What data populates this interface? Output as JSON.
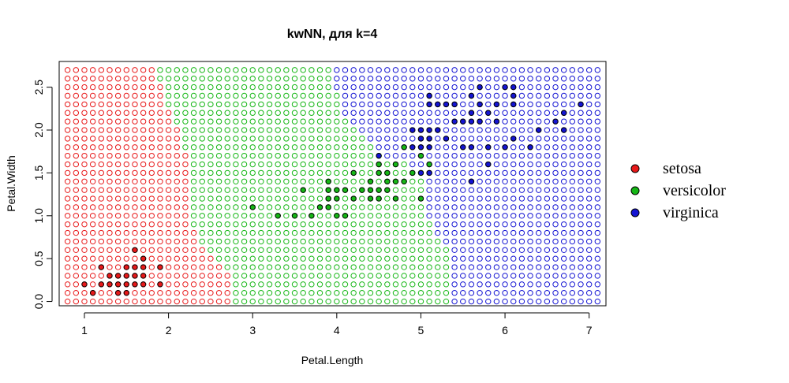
{
  "chart_data": {
    "type": "scatter",
    "title": "kwNN, для k=4",
    "xlabel": "Petal.Length",
    "ylabel": "Petal.Width",
    "xlim": [
      0.7,
      7.2
    ],
    "ylim": [
      -0.05,
      2.8
    ],
    "x_ticks": [
      1,
      2,
      3,
      4,
      5,
      6,
      7
    ],
    "y_ticks": [
      0.0,
      0.5,
      1.0,
      1.5,
      2.0,
      2.5
    ],
    "grid": {
      "x_start": 0.8,
      "x_end": 7.1,
      "x_step": 0.1,
      "y_start": 0.0,
      "y_end": 2.7,
      "y_step": 0.1,
      "marker": "open-circle",
      "class_boundaries_note_by_row": "per row y, x < b1 => setosa, b1 <= x < b2 => versicolor, x >= b2 => virginica",
      "rows": [
        {
          "y": 0.0,
          "b1": 2.8,
          "b2": 5.4
        },
        {
          "y": 0.1,
          "b1": 2.8,
          "b2": 5.4
        },
        {
          "y": 0.2,
          "b1": 2.8,
          "b2": 5.4
        },
        {
          "y": 0.3,
          "b1": 2.8,
          "b2": 5.4
        },
        {
          "y": 0.4,
          "b1": 2.7,
          "b2": 5.4
        },
        {
          "y": 0.5,
          "b1": 2.6,
          "b2": 5.4
        },
        {
          "y": 0.6,
          "b1": 2.5,
          "b2": 5.4
        },
        {
          "y": 0.7,
          "b1": 2.4,
          "b2": 5.3
        },
        {
          "y": 0.8,
          "b1": 2.4,
          "b2": 5.2
        },
        {
          "y": 0.9,
          "b1": 2.3,
          "b2": 5.2
        },
        {
          "y": 1.0,
          "b1": 2.3,
          "b2": 5.1
        },
        {
          "y": 1.1,
          "b1": 2.3,
          "b2": 5.1
        },
        {
          "y": 1.2,
          "b1": 2.3,
          "b2": 5.1
        },
        {
          "y": 1.3,
          "b1": 2.3,
          "b2": 5.1
        },
        {
          "y": 1.4,
          "b1": 2.3,
          "b2": 5.1
        },
        {
          "y": 1.5,
          "b1": 2.3,
          "b2": 5.1
        },
        {
          "y": 1.6,
          "b1": 2.3,
          "b2": 4.9
        },
        {
          "y": 1.7,
          "b1": 2.3,
          "b2": 4.6
        },
        {
          "y": 1.8,
          "b1": 2.2,
          "b2": 4.5
        },
        {
          "y": 1.9,
          "b1": 2.2,
          "b2": 4.4
        },
        {
          "y": 2.0,
          "b1": 2.2,
          "b2": 4.3
        },
        {
          "y": 2.1,
          "b1": 2.1,
          "b2": 4.2
        },
        {
          "y": 2.2,
          "b1": 2.1,
          "b2": 4.1
        },
        {
          "y": 2.3,
          "b1": 2.0,
          "b2": 4.1
        },
        {
          "y": 2.4,
          "b1": 2.0,
          "b2": 4.1
        },
        {
          "y": 2.5,
          "b1": 2.0,
          "b2": 4.0
        },
        {
          "y": 2.6,
          "b1": 1.9,
          "b2": 4.0
        },
        {
          "y": 2.7,
          "b1": 1.9,
          "b2": 4.0
        }
      ]
    },
    "series": [
      {
        "name": "setosa",
        "color": "#e8191a",
        "marker": "filled-circle",
        "points": [
          [
            1.1,
            0.1
          ],
          [
            1.4,
            0.1
          ],
          [
            1.5,
            0.1
          ],
          [
            1.0,
            0.2
          ],
          [
            1.2,
            0.2
          ],
          [
            1.3,
            0.2
          ],
          [
            1.4,
            0.2
          ],
          [
            1.5,
            0.2
          ],
          [
            1.6,
            0.2
          ],
          [
            1.7,
            0.2
          ],
          [
            1.9,
            0.2
          ],
          [
            1.3,
            0.3
          ],
          [
            1.4,
            0.3
          ],
          [
            1.5,
            0.3
          ],
          [
            1.6,
            0.3
          ],
          [
            1.7,
            0.3
          ],
          [
            1.2,
            0.4
          ],
          [
            1.5,
            0.4
          ],
          [
            1.6,
            0.4
          ],
          [
            1.7,
            0.4
          ],
          [
            1.9,
            0.4
          ],
          [
            1.7,
            0.5
          ],
          [
            1.6,
            0.6
          ]
        ]
      },
      {
        "name": "versicolor",
        "color": "#16b716",
        "marker": "filled-circle",
        "points": [
          [
            3.3,
            1.0
          ],
          [
            3.5,
            1.0
          ],
          [
            3.7,
            1.0
          ],
          [
            4.0,
            1.0
          ],
          [
            4.1,
            1.0
          ],
          [
            3.0,
            1.1
          ],
          [
            3.8,
            1.1
          ],
          [
            3.9,
            1.1
          ],
          [
            3.9,
            1.2
          ],
          [
            4.0,
            1.2
          ],
          [
            4.2,
            1.2
          ],
          [
            4.4,
            1.2
          ],
          [
            4.5,
            1.2
          ],
          [
            4.7,
            1.2
          ],
          [
            5.0,
            1.2
          ],
          [
            3.6,
            1.3
          ],
          [
            3.9,
            1.3
          ],
          [
            4.0,
            1.3
          ],
          [
            4.1,
            1.3
          ],
          [
            4.3,
            1.3
          ],
          [
            4.4,
            1.3
          ],
          [
            4.5,
            1.3
          ],
          [
            4.6,
            1.3
          ],
          [
            3.9,
            1.4
          ],
          [
            4.4,
            1.4
          ],
          [
            4.6,
            1.4
          ],
          [
            4.7,
            1.4
          ],
          [
            4.8,
            1.4
          ],
          [
            4.2,
            1.5
          ],
          [
            4.5,
            1.5
          ],
          [
            4.6,
            1.5
          ],
          [
            4.9,
            1.5
          ],
          [
            4.5,
            1.6
          ],
          [
            4.7,
            1.6
          ],
          [
            5.1,
            1.6
          ],
          [
            5.0,
            1.7
          ],
          [
            4.8,
            1.8
          ]
        ]
      },
      {
        "name": "virginica",
        "color": "#1414d3",
        "marker": "filled-circle",
        "points": [
          [
            5.0,
            1.5
          ],
          [
            5.1,
            1.5
          ],
          [
            5.6,
            1.4
          ],
          [
            5.8,
            1.6
          ],
          [
            4.5,
            1.7
          ],
          [
            4.9,
            1.8
          ],
          [
            5.0,
            1.8
          ],
          [
            5.1,
            1.8
          ],
          [
            5.5,
            1.8
          ],
          [
            5.6,
            1.8
          ],
          [
            5.8,
            1.8
          ],
          [
            6.0,
            1.8
          ],
          [
            6.3,
            1.8
          ],
          [
            5.0,
            1.9
          ],
          [
            5.1,
            1.9
          ],
          [
            5.3,
            1.9
          ],
          [
            6.1,
            1.9
          ],
          [
            4.9,
            2.0
          ],
          [
            5.0,
            2.0
          ],
          [
            5.1,
            2.0
          ],
          [
            5.2,
            2.0
          ],
          [
            6.4,
            2.0
          ],
          [
            6.7,
            2.0
          ],
          [
            5.4,
            2.1
          ],
          [
            5.5,
            2.1
          ],
          [
            5.6,
            2.1
          ],
          [
            5.7,
            2.1
          ],
          [
            5.9,
            2.1
          ],
          [
            6.6,
            2.1
          ],
          [
            5.6,
            2.2
          ],
          [
            5.8,
            2.2
          ],
          [
            6.7,
            2.2
          ],
          [
            5.1,
            2.3
          ],
          [
            5.2,
            2.3
          ],
          [
            5.3,
            2.3
          ],
          [
            5.4,
            2.3
          ],
          [
            5.7,
            2.3
          ],
          [
            5.9,
            2.3
          ],
          [
            6.1,
            2.3
          ],
          [
            6.9,
            2.3
          ],
          [
            5.1,
            2.4
          ],
          [
            5.6,
            2.4
          ],
          [
            6.1,
            2.4
          ],
          [
            5.7,
            2.5
          ],
          [
            6.0,
            2.5
          ],
          [
            6.1,
            2.5
          ]
        ]
      }
    ],
    "legend": {
      "position": "right",
      "entries": [
        {
          "label": "setosa",
          "color": "#e8191a"
        },
        {
          "label": "versicolor",
          "color": "#16b716"
        },
        {
          "label": "virginica",
          "color": "#1414d3"
        }
      ]
    }
  }
}
